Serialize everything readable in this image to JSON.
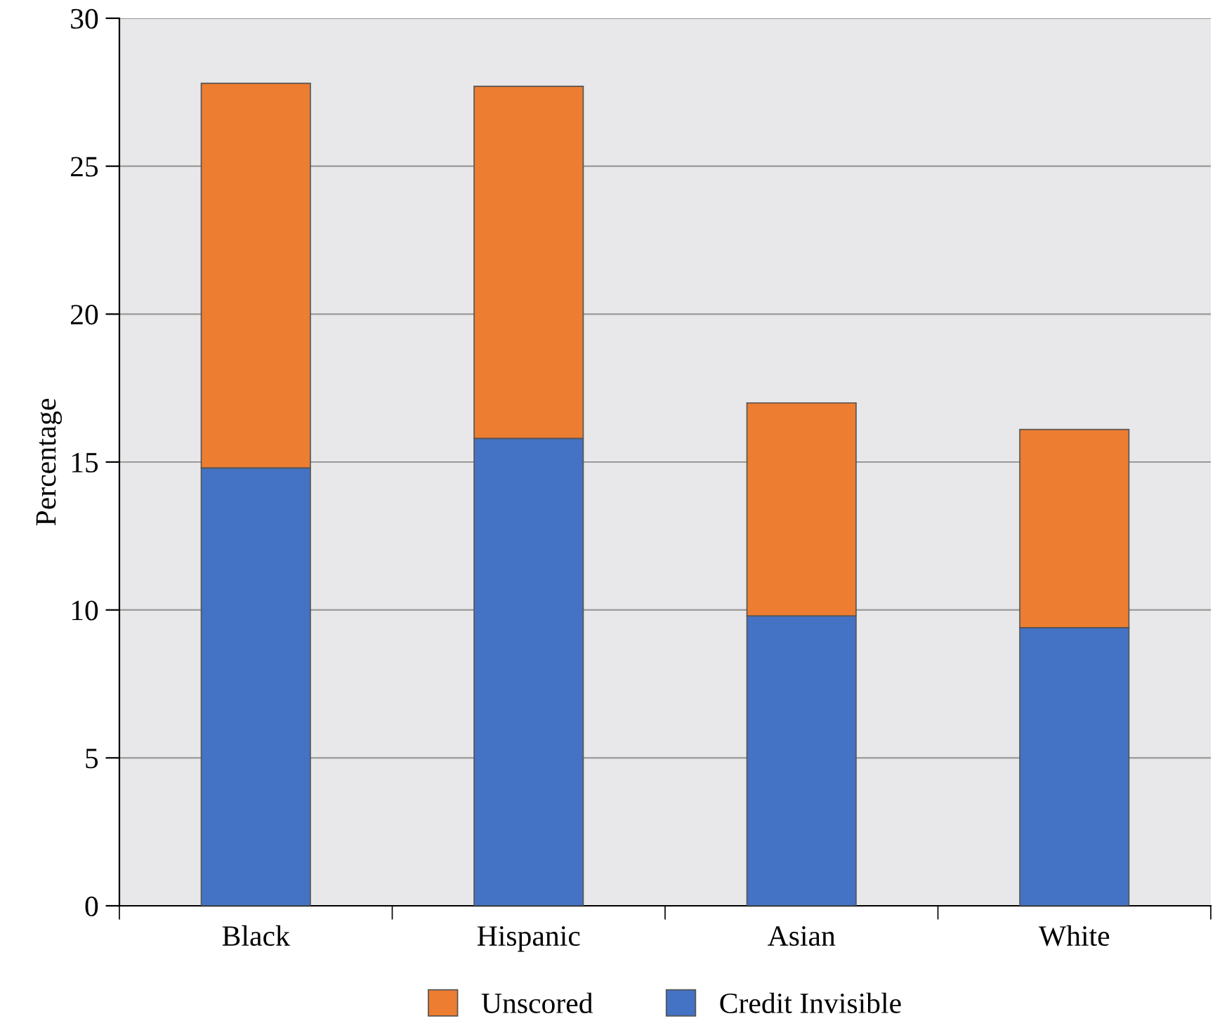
{
  "chart_data": {
    "type": "bar",
    "stacked": true,
    "ylabel": "Percentage",
    "categories": [
      "Black",
      "Hispanic",
      "Asian",
      "White"
    ],
    "series": [
      {
        "name": "Credit Invisible",
        "color": "#4472c4",
        "values": [
          14.8,
          15.8,
          9.8,
          9.4
        ]
      },
      {
        "name": "Unscored",
        "color": "#ed7d31",
        "values": [
          13.0,
          11.9,
          7.2,
          6.7
        ]
      }
    ],
    "ylim": [
      0,
      30
    ],
    "yticks": [
      0,
      5,
      10,
      15,
      20,
      25,
      30
    ],
    "grid": "y",
    "legend": "bottom"
  }
}
